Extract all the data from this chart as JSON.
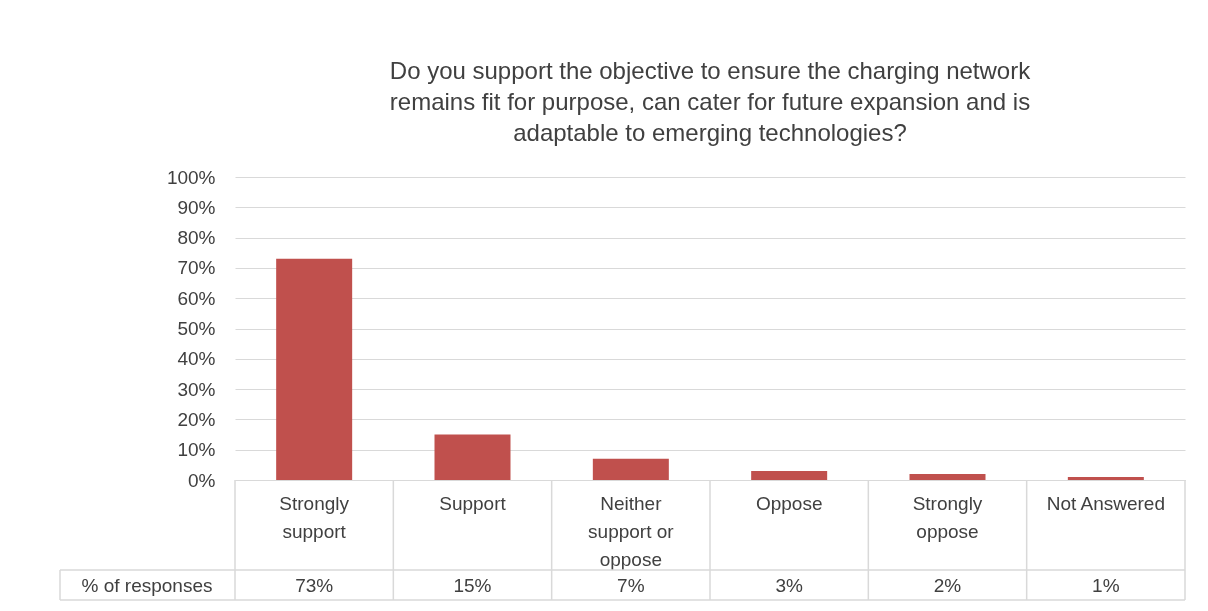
{
  "chart_data": {
    "type": "bar",
    "title": "Do you support the objective to ensure the charging network remains fit for purpose, can cater for future expansion and is adaptable to emerging technologies?",
    "categories": [
      "Strongly support",
      "Support",
      "Neither support or oppose",
      "Oppose",
      "Strongly oppose",
      "Not Answered"
    ],
    "series": [
      {
        "name": "% of responses",
        "color": "#c0504d",
        "values": [
          73,
          15,
          7,
          3,
          2,
          1
        ],
        "value_labels": [
          "73%",
          "15%",
          "7%",
          "3%",
          "2%",
          "1%"
        ]
      }
    ],
    "ylim": [
      0,
      100
    ],
    "yticks": [
      {
        "value": 0,
        "label": "0%"
      },
      {
        "value": 10,
        "label": "10%"
      },
      {
        "value": 20,
        "label": "20%"
      },
      {
        "value": 30,
        "label": "30%"
      },
      {
        "value": 40,
        "label": "40%"
      },
      {
        "value": 50,
        "label": "50%"
      },
      {
        "value": 60,
        "label": "60%"
      },
      {
        "value": 70,
        "label": "70%"
      },
      {
        "value": 80,
        "label": "80%"
      },
      {
        "value": 90,
        "label": "90%"
      },
      {
        "value": 100,
        "label": "100%"
      }
    ],
    "grid": "y"
  }
}
